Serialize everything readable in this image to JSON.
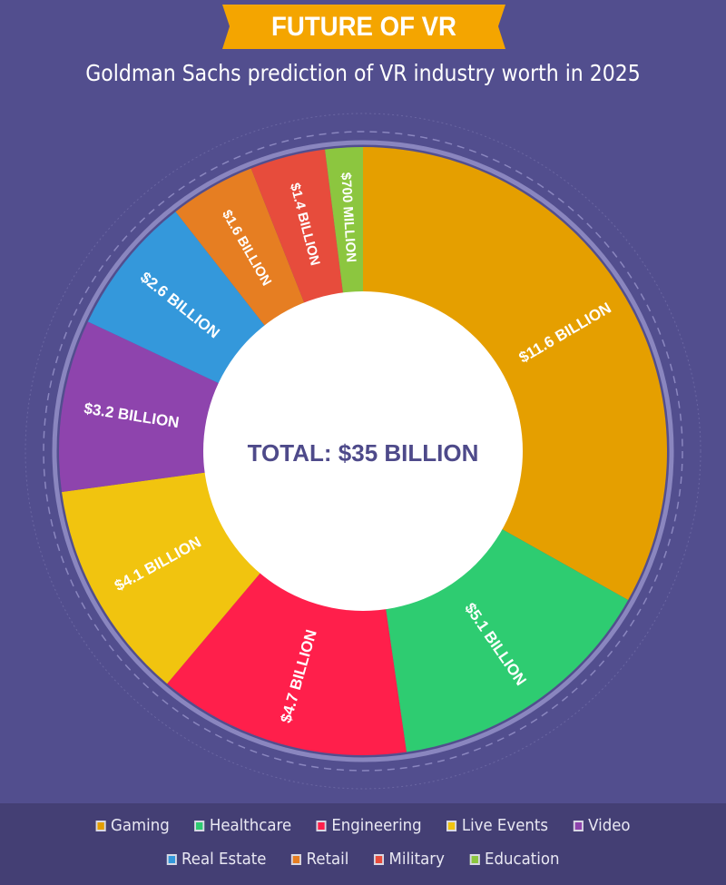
{
  "header": {
    "title": "FUTURE OF VR",
    "subtitle": "Goldman Sachs prediction of VR industry worth in 2025",
    "banner_color": "#f4a500"
  },
  "chart_data": {
    "type": "pie",
    "donut": true,
    "title": "FUTURE OF VR",
    "subtitle": "Goldman Sachs prediction of VR industry worth in 2025",
    "center_label": "TOTAL: $35 BILLION",
    "unit": "billion USD",
    "legend_position": "bottom",
    "slices": [
      {
        "name": "Gaming",
        "value": 11.6,
        "label": "$11.6 BILLION",
        "color": "#e59f00"
      },
      {
        "name": "Healthcare",
        "value": 5.1,
        "label": "$5.1 BILLION",
        "color": "#2ecc71"
      },
      {
        "name": "Engineering",
        "value": 4.7,
        "label": "$4.7 BILLION",
        "color": "#ff1f4b"
      },
      {
        "name": "Live Events",
        "value": 4.1,
        "label": "$4.1 BILLION",
        "color": "#f1c40f"
      },
      {
        "name": "Video",
        "value": 3.2,
        "label": "$3.2 BILLION",
        "color": "#8e44ad"
      },
      {
        "name": "Real Estate",
        "value": 2.6,
        "label": "$2.6 BILLION",
        "color": "#3498db"
      },
      {
        "name": "Retail",
        "value": 1.6,
        "label": "$1.6 BILLION",
        "color": "#e67e22"
      },
      {
        "name": "Military",
        "value": 1.4,
        "label": "$1.4 BILLION",
        "color": "#e74c3c"
      },
      {
        "name": "Education",
        "value": 0.7,
        "label": "$700 MILLION",
        "color": "#8cc63f"
      }
    ]
  }
}
